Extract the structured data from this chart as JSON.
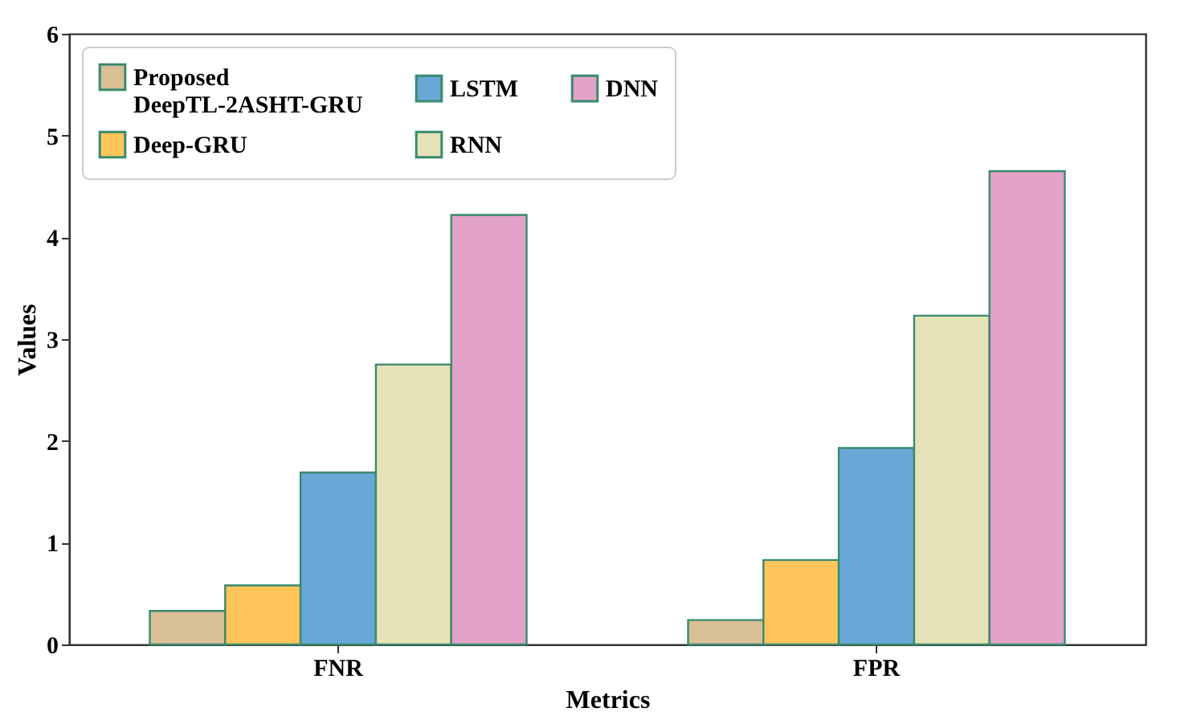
{
  "chart_data": {
    "type": "bar",
    "xlabel": "Metrics",
    "ylabel": "Values",
    "categories": [
      "FNR",
      "FPR"
    ],
    "series": [
      {
        "name": "Proposed DeepTL-2ASHT-GRU",
        "color": "#d9bf96",
        "values": [
          0.33,
          0.24
        ]
      },
      {
        "name": "Deep-GRU",
        "color": "#ffc55a",
        "values": [
          0.58,
          0.83
        ]
      },
      {
        "name": "LSTM",
        "color": "#6aa7d6",
        "values": [
          1.69,
          1.93
        ]
      },
      {
        "name": "RNN",
        "color": "#e5e2b8",
        "values": [
          2.75,
          3.23
        ]
      },
      {
        "name": "DNN",
        "color": "#e3a2c8",
        "values": [
          4.22,
          4.65
        ]
      }
    ],
    "ylim": [
      0,
      6
    ],
    "yticks": [
      0,
      1,
      2,
      3,
      4,
      5,
      6
    ],
    "legend": "top left",
    "grid": false
  }
}
